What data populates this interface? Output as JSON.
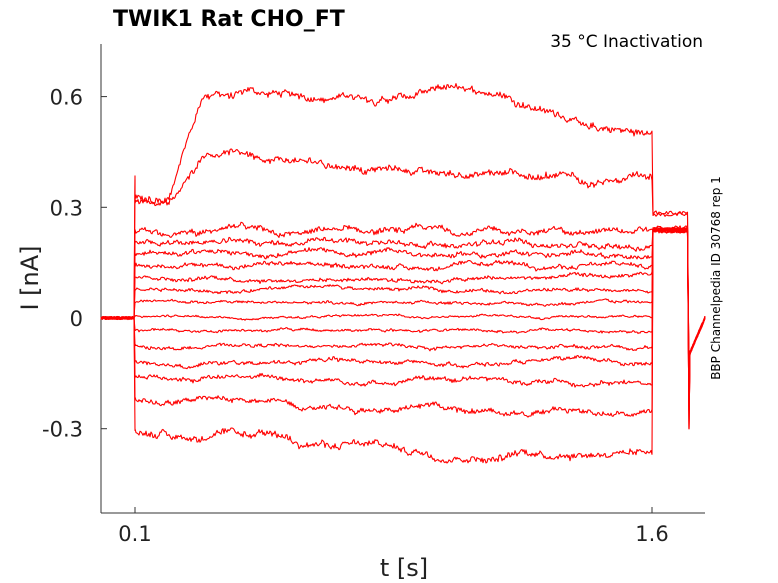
{
  "chart_data": {
    "type": "line",
    "title": "TWIK1  Rat  CHO_FT",
    "subtitle": "35 °C  Inactivation",
    "xlabel": "t [s]",
    "ylabel": "I [nA]",
    "side_label": "BBP Channelpedia ID 30768 rep 1",
    "xlim": [
      0.0,
      1.75
    ],
    "ylim": [
      -0.52,
      0.74
    ],
    "x_ticks": [
      0.1,
      1.6
    ],
    "x_tick_labels": [
      "0.1",
      "1.6"
    ],
    "y_ticks": [
      -0.3,
      0,
      0.3,
      0.6
    ],
    "y_tick_labels": [
      "-0.3",
      "0",
      "0.3",
      "0.6"
    ],
    "color": "#ff0000",
    "protocol": {
      "baseline_end": 0.1,
      "step_end": 1.6,
      "trace_end": 1.75
    },
    "baseline_current": 0.0,
    "series": [
      {
        "step": [
          [
            0.1,
            0.315
          ],
          [
            0.2,
            0.33
          ],
          [
            0.3,
            0.6
          ],
          [
            0.6,
            0.6
          ],
          [
            0.9,
            0.605
          ],
          [
            1.05,
            0.625
          ],
          [
            1.15,
            0.61
          ],
          [
            1.3,
            0.57
          ],
          [
            1.45,
            0.51
          ],
          [
            1.6,
            0.495
          ]
        ],
        "tail": 0.28
      },
      {
        "step": [
          [
            0.1,
            0.325
          ],
          [
            0.2,
            0.32
          ],
          [
            0.25,
            0.38
          ],
          [
            0.3,
            0.455
          ],
          [
            0.4,
            0.455
          ],
          [
            0.6,
            0.425
          ],
          [
            0.9,
            0.405
          ],
          [
            1.2,
            0.38
          ],
          [
            1.6,
            0.365
          ]
        ],
        "tail": 0.285
      },
      {
        "step": [
          [
            0.1,
            0.235
          ],
          [
            1.6,
            0.232
          ]
        ],
        "tail": 0.24
      },
      {
        "step": [
          [
            0.1,
            0.205
          ],
          [
            1.6,
            0.202
          ]
        ],
        "tail": 0.24
      },
      {
        "step": [
          [
            0.1,
            0.175
          ],
          [
            1.6,
            0.172
          ]
        ],
        "tail": 0.235
      },
      {
        "step": [
          [
            0.1,
            0.142
          ],
          [
            1.6,
            0.14
          ]
        ],
        "tail": 0.24
      },
      {
        "step": [
          [
            0.1,
            0.11
          ],
          [
            1.6,
            0.108
          ]
        ],
        "tail": 0.245
      },
      {
        "step": [
          [
            0.1,
            0.077
          ],
          [
            1.6,
            0.075
          ]
        ],
        "tail": 0.24
      },
      {
        "step": [
          [
            0.1,
            0.042
          ],
          [
            1.6,
            0.04
          ]
        ],
        "tail": 0.235
      },
      {
        "step": [
          [
            0.1,
            0.005
          ],
          [
            1.6,
            0.003
          ]
        ],
        "tail": 0.24
      },
      {
        "step": [
          [
            0.1,
            -0.032
          ],
          [
            1.6,
            -0.034
          ]
        ],
        "tail": 0.24
      },
      {
        "step": [
          [
            0.1,
            -0.075
          ],
          [
            1.6,
            -0.078
          ]
        ],
        "tail": 0.235
      },
      {
        "step": [
          [
            0.1,
            -0.12
          ],
          [
            1.6,
            -0.122
          ]
        ],
        "tail": 0.24
      },
      {
        "step": [
          [
            0.1,
            -0.16
          ],
          [
            1.6,
            -0.175
          ]
        ],
        "tail": 0.235
      },
      {
        "step": [
          [
            0.1,
            -0.22
          ],
          [
            1.6,
            -0.255
          ]
        ],
        "tail": 0.24
      },
      {
        "step": [
          [
            0.1,
            -0.305
          ],
          [
            0.6,
            -0.335
          ],
          [
            1.0,
            -0.37
          ],
          [
            1.6,
            -0.35
          ]
        ],
        "tail": 0.235
      }
    ]
  }
}
